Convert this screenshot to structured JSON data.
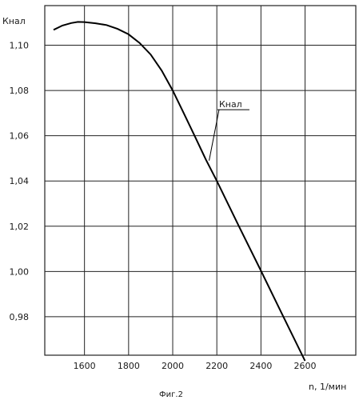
{
  "chart_data": {
    "type": "line",
    "ylabel": "Кнал",
    "xlabel": "n, 1/мин",
    "caption": "Фиг.2",
    "xlim": [
      1420,
      2830
    ],
    "ylim": [
      0.963,
      1.1175
    ],
    "xticks": [
      1600,
      1800,
      2000,
      2200,
      2400,
      2600
    ],
    "yticks": [
      0.98,
      1.0,
      1.02,
      1.04,
      1.06,
      1.08,
      1.1
    ],
    "xtick_labels": [
      "1600",
      "1800",
      "2000",
      "2200",
      "2400",
      "2600"
    ],
    "ytick_labels": [
      "0,98",
      "1,00",
      "1,02",
      "1,04",
      "1,06",
      "1,08",
      "1,10"
    ],
    "grid": true,
    "series": [
      {
        "name": "Кнал",
        "x": [
          1460,
          1500,
          1540,
          1570,
          1600,
          1650,
          1700,
          1750,
          1800,
          1850,
          1900,
          1950,
          2000,
          2050,
          2100,
          2150,
          2200,
          2300,
          2400,
          2500,
          2600
        ],
        "y": [
          1.1068,
          1.1087,
          1.1098,
          1.1103,
          1.1102,
          1.1097,
          1.1089,
          1.1072,
          1.1048,
          1.101,
          1.0959,
          1.0888,
          1.08,
          1.07,
          1.0598,
          1.0495,
          1.04,
          1.02,
          1.0003,
          0.9803,
          0.9605
        ]
      }
    ],
    "annotations": [
      {
        "text": "Кнал",
        "x": 2210,
        "y": 1.0715,
        "arrow_x": 2165,
        "arrow_y": 1.049
      }
    ]
  }
}
